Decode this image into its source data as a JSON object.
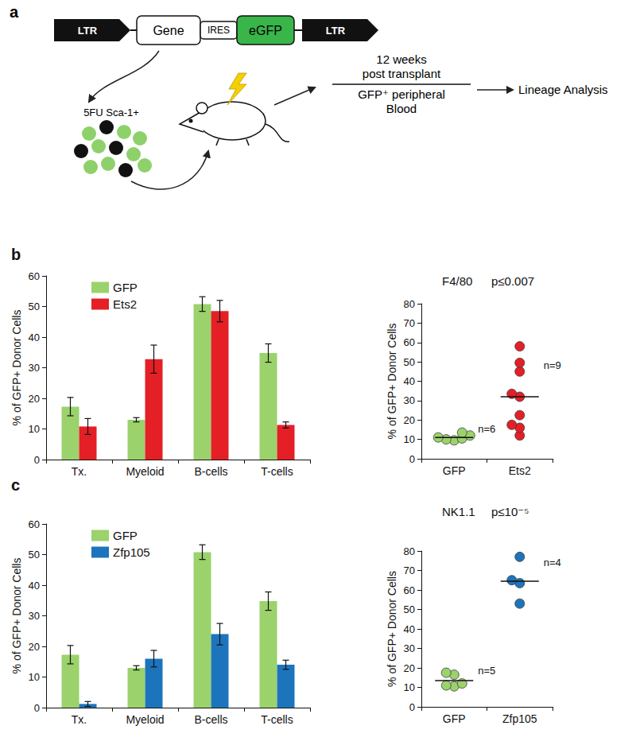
{
  "diagram": {
    "panel_label": "a",
    "construct": [
      "LTR",
      "Gene",
      "IRES",
      "eGFP",
      "LTR"
    ],
    "cells_label": "5FU Sca-1+",
    "timeline": [
      "12 weeks",
      "post transplant"
    ],
    "sample": [
      "GFP⁺ peripheral",
      "Blood"
    ],
    "analysis": "Lineage Analysis"
  },
  "chart_data": [
    {
      "panel": "b",
      "type": "bar",
      "y_label": "% of GFP+ Donor Cells",
      "categories": [
        "Tx.",
        "Myeloid",
        "B-cells",
        "T-cells"
      ],
      "series": [
        {
          "name": "GFP",
          "color": "#9bd26c",
          "values": [
            17.3,
            13,
            50.8,
            34.8
          ],
          "errors": [
            3,
            0.7,
            2.4,
            3
          ]
        },
        {
          "name": "Ets2",
          "color": "#e41f26",
          "values": [
            10.8,
            32.8,
            48.5,
            11.3
          ],
          "errors": [
            2.6,
            4.6,
            3.5,
            1
          ]
        }
      ],
      "ylim": [
        0,
        60
      ],
      "yticks": [
        0,
        10,
        20,
        30,
        40,
        50,
        60
      ],
      "grid": false,
      "legend": "top-left"
    },
    {
      "type": "scatter",
      "title": "F4/80",
      "p_label": "p≤0.007",
      "y_label": "% of GFP+ Donor Cells",
      "categories": [
        "GFP",
        "Ets2"
      ],
      "groups": [
        {
          "color": "#9bd26c",
          "values": [
            9.5,
            10,
            10.5,
            11,
            12,
            13.5
          ],
          "median": 11,
          "n_label": "n=6"
        },
        {
          "color": "#e41f26",
          "values": [
            12,
            16,
            17.5,
            22.5,
            32,
            33.5,
            45,
            49.5,
            58
          ],
          "median": 32,
          "n_label": "n=9"
        }
      ],
      "ylim": [
        0,
        80
      ],
      "yticks": [
        0,
        10,
        20,
        30,
        40,
        50,
        60,
        70,
        80
      ],
      "grid": false,
      "marker": "circle"
    },
    {
      "panel": "c",
      "type": "bar",
      "y_label": "% of GFP+ Donor Cells",
      "categories": [
        "Tx.",
        "Myeloid",
        "B-cells",
        "T-cells"
      ],
      "series": [
        {
          "name": "GFP",
          "color": "#9bd26c",
          "values": [
            17.3,
            13,
            50.8,
            34.8
          ],
          "errors": [
            3,
            0.7,
            2.4,
            3
          ]
        },
        {
          "name": "Zfp105",
          "color": "#1c75bc",
          "values": [
            1.2,
            16,
            24,
            14
          ],
          "errors": [
            0.8,
            2.7,
            3.5,
            1.5
          ]
        }
      ],
      "ylim": [
        0,
        60
      ],
      "yticks": [
        0,
        10,
        20,
        30,
        40,
        50,
        60
      ],
      "grid": false,
      "legend": "top-left"
    },
    {
      "type": "scatter",
      "title": "NK1.1",
      "p_label": "p≤10⁻⁵",
      "y_label": "% of GFP+ Donor Cells",
      "categories": [
        "GFP",
        "Zfp105"
      ],
      "groups": [
        {
          "color": "#9bd26c",
          "values": [
            10.5,
            11,
            12,
            16.5,
            17.5
          ],
          "median": 13.5,
          "n_label": "n=5"
        },
        {
          "color": "#1c75bc",
          "values": [
            53,
            63.5,
            65,
            77
          ],
          "median": 64.5,
          "n_label": "n=4"
        }
      ],
      "ylim": [
        0,
        80
      ],
      "yticks": [
        0,
        10,
        20,
        30,
        40,
        50,
        60,
        70,
        80
      ],
      "grid": false,
      "marker": "circle"
    }
  ]
}
